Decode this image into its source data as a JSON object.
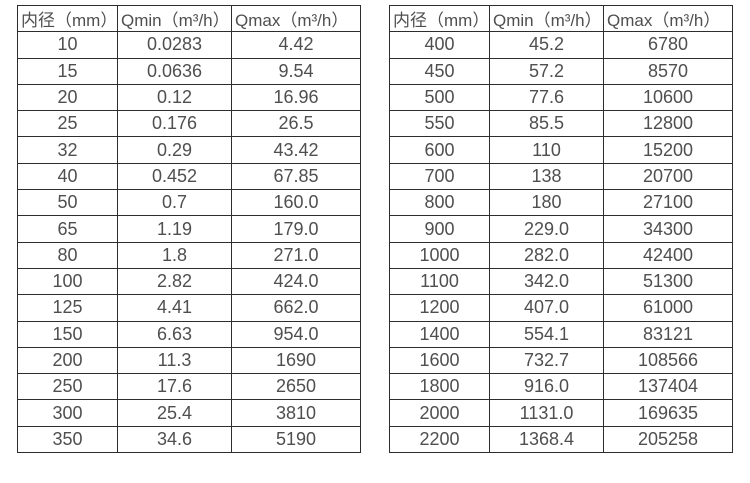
{
  "accent_colors": {
    "border": "#2d2d2d",
    "text": "#4f4f4f",
    "background": "#ffffff"
  },
  "table_left": {
    "headers": [
      "内径（mm）",
      "Qmin（m³/h）",
      "Qmax（m³/h）"
    ],
    "rows": [
      [
        "10",
        "0.0283",
        "4.42"
      ],
      [
        "15",
        "0.0636",
        "9.54"
      ],
      [
        "20",
        "0.12",
        "16.96"
      ],
      [
        "25",
        "0.176",
        "26.5"
      ],
      [
        "32",
        "0.29",
        "43.42"
      ],
      [
        "40",
        "0.452",
        "67.85"
      ],
      [
        "50",
        "0.7",
        "160.0"
      ],
      [
        "65",
        "1.19",
        "179.0"
      ],
      [
        "80",
        "1.8",
        "271.0"
      ],
      [
        "100",
        "2.82",
        "424.0"
      ],
      [
        "125",
        "4.41",
        "662.0"
      ],
      [
        "150",
        "6.63",
        "954.0"
      ],
      [
        "200",
        "11.3",
        "1690"
      ],
      [
        "250",
        "17.6",
        "2650"
      ],
      [
        "300",
        "25.4",
        "3810"
      ],
      [
        "350",
        "34.6",
        "5190"
      ]
    ]
  },
  "table_right": {
    "headers": [
      "内径（mm）",
      "Qmin（m³/h）",
      "Qmax（m³/h）"
    ],
    "rows": [
      [
        "400",
        "45.2",
        "6780"
      ],
      [
        "450",
        "57.2",
        "8570"
      ],
      [
        "500",
        "77.6",
        "10600"
      ],
      [
        "550",
        "85.5",
        "12800"
      ],
      [
        "600",
        "110",
        "15200"
      ],
      [
        "700",
        "138",
        "20700"
      ],
      [
        "800",
        "180",
        "27100"
      ],
      [
        "900",
        "229.0",
        "34300"
      ],
      [
        "1000",
        "282.0",
        "42400"
      ],
      [
        "1100",
        "342.0",
        "51300"
      ],
      [
        "1200",
        "407.0",
        "61000"
      ],
      [
        "1400",
        "554.1",
        "83121"
      ],
      [
        "1600",
        "732.7",
        "108566"
      ],
      [
        "1800",
        "916.0",
        "137404"
      ],
      [
        "2000",
        "1131.0",
        "169635"
      ],
      [
        "2200",
        "1368.4",
        "205258"
      ]
    ]
  }
}
